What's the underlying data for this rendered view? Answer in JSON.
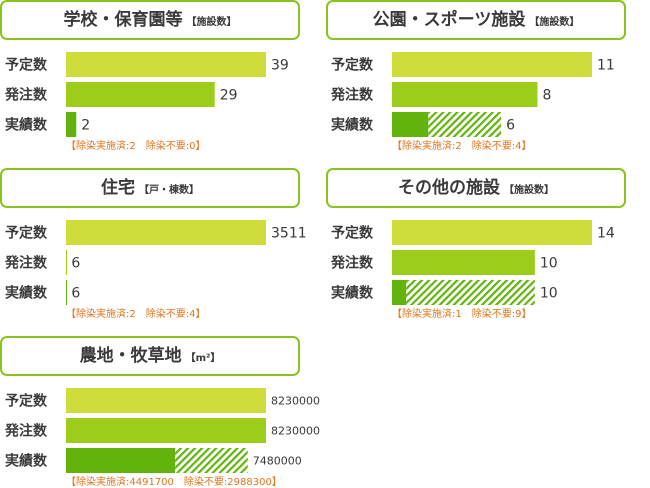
{
  "colors": {
    "planned": "#cfdd3b",
    "ordered": "#9ccd1a",
    "actual": "#62b40c",
    "hatch": "#62b40c",
    "border": "#8cc21f",
    "note": "#e2741d"
  },
  "row_labels": [
    "予定数",
    "発注数",
    "実績数"
  ],
  "chart_data": [
    {
      "type": "bar",
      "title": "学校・保育園等",
      "unit": "【施設数】",
      "categories": [
        "予定数",
        "発注数",
        "実績数"
      ],
      "values": [
        39,
        29,
        2
      ],
      "value_labels": [
        "39",
        "29",
        "2"
      ],
      "actual_breakdown": {
        "decontaminated": 2,
        "not_required": 0
      },
      "notes": {
        "decontaminated": "除染実施済:2",
        "not_required": "除染不要:0"
      },
      "note_text": "【除染実施済:2　除染不要:0】",
      "xlim": [
        0,
        39
      ]
    },
    {
      "type": "bar",
      "title": "公園・スポーツ施設",
      "unit": "【施設数】",
      "categories": [
        "予定数",
        "発注数",
        "実績数"
      ],
      "values": [
        11,
        8,
        6
      ],
      "value_labels": [
        "11",
        "8",
        "6"
      ],
      "actual_breakdown": {
        "decontaminated": 2,
        "not_required": 4
      },
      "notes": {
        "decontaminated": "除染実施済:2",
        "not_required": "除染不要:4"
      },
      "note_text": "【除染実施済:2　除染不要:4】",
      "xlim": [
        0,
        11
      ]
    },
    {
      "type": "bar",
      "title": "住宅",
      "unit": "【戸・棟数】",
      "categories": [
        "予定数",
        "発注数",
        "実績数"
      ],
      "values": [
        3511,
        6,
        6
      ],
      "value_labels": [
        "3511",
        "6",
        "6"
      ],
      "actual_breakdown": {
        "decontaminated": 2,
        "not_required": 4
      },
      "notes": {
        "decontaminated": "除染実施済:2",
        "not_required": "除染不要:4"
      },
      "note_text": "【除染実施済:2　除染不要:4】",
      "xlim": [
        0,
        3511
      ]
    },
    {
      "type": "bar",
      "title": "その他の施設",
      "unit": "【施設数】",
      "categories": [
        "予定数",
        "発注数",
        "実績数"
      ],
      "values": [
        14,
        10,
        10
      ],
      "value_labels": [
        "14",
        "10",
        "10"
      ],
      "actual_breakdown": {
        "decontaminated": 1,
        "not_required": 9
      },
      "notes": {
        "decontaminated": "除染実施済:1",
        "not_required": "除染不要:9"
      },
      "note_text": "【除染実施済:1　除染不要:9】",
      "xlim": [
        0,
        14
      ]
    },
    {
      "type": "bar",
      "title": "農地・牧草地",
      "unit": "【m²】",
      "categories": [
        "予定数",
        "発注数",
        "実績数"
      ],
      "values": [
        8230000,
        8230000,
        7480000
      ],
      "value_labels": [
        "8230000",
        "8230000",
        "7480000"
      ],
      "actual_breakdown": {
        "decontaminated": 4491700,
        "not_required": 2988300
      },
      "notes": {
        "decontaminated": "除染実施済:4491700",
        "not_required": "除染不要:2988300"
      },
      "note_text": "【除染実施済:4491700　除染不要:2988300】",
      "xlim": [
        0,
        8230000
      ]
    }
  ]
}
